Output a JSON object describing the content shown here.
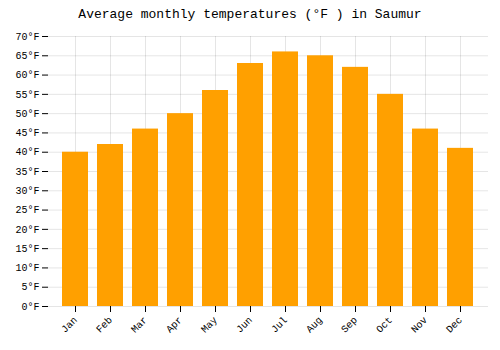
{
  "chart_data": {
    "type": "bar",
    "title": "Average monthly temperatures (°F ) in Saumur",
    "categories": [
      "Jan",
      "Feb",
      "Mar",
      "Apr",
      "May",
      "Jun",
      "Jul",
      "Aug",
      "Sep",
      "Oct",
      "Nov",
      "Dec"
    ],
    "values": [
      40,
      42,
      46,
      50,
      56,
      63,
      66,
      65,
      62,
      55,
      46,
      41
    ],
    "color": "#FFA000",
    "ylim": [
      0,
      70
    ],
    "yticks": [
      {
        "value": 0,
        "label": "0°F"
      },
      {
        "value": 5,
        "label": "5°F"
      },
      {
        "value": 10,
        "label": "10°F"
      },
      {
        "value": 15,
        "label": "15°F"
      },
      {
        "value": 20,
        "label": "20°F"
      },
      {
        "value": 25,
        "label": "25°F"
      },
      {
        "value": 30,
        "label": "30°F"
      },
      {
        "value": 35,
        "label": "35°F"
      },
      {
        "value": 40,
        "label": "40°F"
      },
      {
        "value": 45,
        "label": "45°F"
      },
      {
        "value": 50,
        "label": "50°F"
      },
      {
        "value": 55,
        "label": "55°F"
      },
      {
        "value": 60,
        "label": "60°F"
      },
      {
        "value": 65,
        "label": "65°F"
      },
      {
        "value": 70,
        "label": "70°F"
      }
    ],
    "grid": true
  }
}
